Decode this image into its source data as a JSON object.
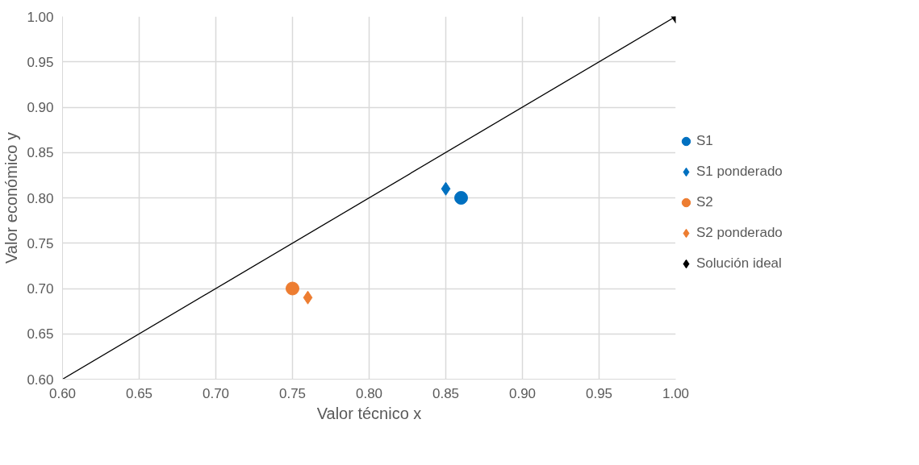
{
  "chart_data": {
    "type": "scatter",
    "xlabel": "Valor técnico x",
    "ylabel": "Valor económico y",
    "xlim": [
      0.6,
      1.0
    ],
    "ylim": [
      0.6,
      1.0
    ],
    "xticks": [
      {
        "value": 0.6,
        "label": "0.60"
      },
      {
        "value": 0.65,
        "label": "0.65"
      },
      {
        "value": 0.7,
        "label": "0.70"
      },
      {
        "value": 0.75,
        "label": "0.75"
      },
      {
        "value": 0.8,
        "label": "0.80"
      },
      {
        "value": 0.85,
        "label": "0.85"
      },
      {
        "value": 0.9,
        "label": "0.90"
      },
      {
        "value": 0.95,
        "label": "0.95"
      },
      {
        "value": 1.0,
        "label": "1.00"
      }
    ],
    "yticks": [
      {
        "value": 0.6,
        "label": "0.60"
      },
      {
        "value": 0.65,
        "label": "0.65"
      },
      {
        "value": 0.7,
        "label": "0.70"
      },
      {
        "value": 0.75,
        "label": "0.75"
      },
      {
        "value": 0.8,
        "label": "0.80"
      },
      {
        "value": 0.85,
        "label": "0.85"
      },
      {
        "value": 0.9,
        "label": "0.90"
      },
      {
        "value": 0.95,
        "label": "0.95"
      },
      {
        "value": 1.0,
        "label": "1.00"
      }
    ],
    "grid": true,
    "legend": "right",
    "series": [
      {
        "type": "line",
        "color": "#000000",
        "x": [
          0.6,
          1.0
        ],
        "values": [
          0.6,
          1.0
        ],
        "marker": "none"
      },
      {
        "name": "S1",
        "color": "#0070c0",
        "x": [
          0.86
        ],
        "values": [
          0.8
        ],
        "marker": "circle"
      },
      {
        "name": "S1 ponderado",
        "color": "#0070c0",
        "x": [
          0.85
        ],
        "values": [
          0.81
        ],
        "marker": "diamond"
      },
      {
        "name": "S2",
        "color": "#ed7d31",
        "x": [
          0.75
        ],
        "values": [
          0.7
        ],
        "marker": "circle"
      },
      {
        "name": "S2 ponderado",
        "color": "#ed7d31",
        "x": [
          0.76
        ],
        "values": [
          0.69
        ],
        "marker": "diamond"
      },
      {
        "name": "Solución ideal",
        "color": "#000000",
        "x": [
          1.0
        ],
        "values": [
          1.0
        ],
        "marker": "diamond"
      }
    ]
  }
}
